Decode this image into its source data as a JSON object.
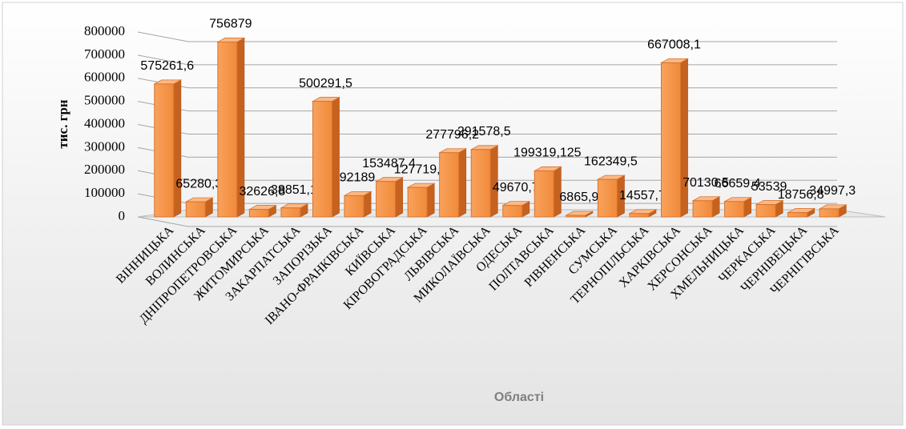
{
  "chart_data": {
    "type": "bar3d",
    "y_label": "тис. грн",
    "x_label": "Області",
    "categories": [
      "ВІННИЦЬКА",
      "ВОЛИНСЬКА",
      "ДНІПРОПЕТРОВСЬКА",
      "ЖИТОМИРСЬКА",
      "ЗАКАРПАТСЬКА",
      "ЗАПОРІЗЬКА",
      "ІВАНО-ФРАНКІВСЬКА",
      "КИЇВСЬКА",
      "КІРОВОГРАДСЬКА",
      "ЛЬВІВСЬКА",
      "МИКОЛАЇВСЬКА",
      "ОДЕСЬКА",
      "ПОЛТАВСЬКА",
      "РІВНЕНСЬКА",
      "СУМСЬКА",
      "ТЕРНОПІЛЬСЬКА",
      "ХАРКІВСЬКА",
      "ХЕРСОНСЬКА",
      "ХМЕЛЬНИЦЬКА",
      "ЧЕРКАСЬКА",
      "ЧЕРНІВЕЦЬКА",
      "ЧЕРНІГІВСЬКА"
    ],
    "values": [
      575261.6,
      65280.3,
      756879,
      32626.8,
      38851.1,
      500291.5,
      92189,
      153487.4,
      127719.1,
      277796.2,
      291578.5,
      49670.7,
      199319.125,
      6865.9,
      162349.5,
      14557.7,
      667008.1,
      70130.5,
      66659.4,
      53539,
      18756.8,
      34997.3
    ],
    "value_labels": [
      "575261,6",
      "65280,3",
      "756879",
      "32626,8",
      "38851,1",
      "500291,5",
      "92189",
      "153487,4",
      "127719,1",
      "277796,2",
      "291578,5",
      "49670,7",
      "199319,125",
      "6865,9",
      "162349,5",
      "14557,7",
      "667008,1",
      "70130,5",
      "66659,4",
      "53539",
      "18756,8",
      "34997,3"
    ],
    "color": "#f79646",
    "ylim": [
      0,
      800000
    ],
    "yticks": [
      0,
      100000,
      200000,
      300000,
      400000,
      500000,
      600000,
      700000,
      800000
    ],
    "grid": true
  }
}
